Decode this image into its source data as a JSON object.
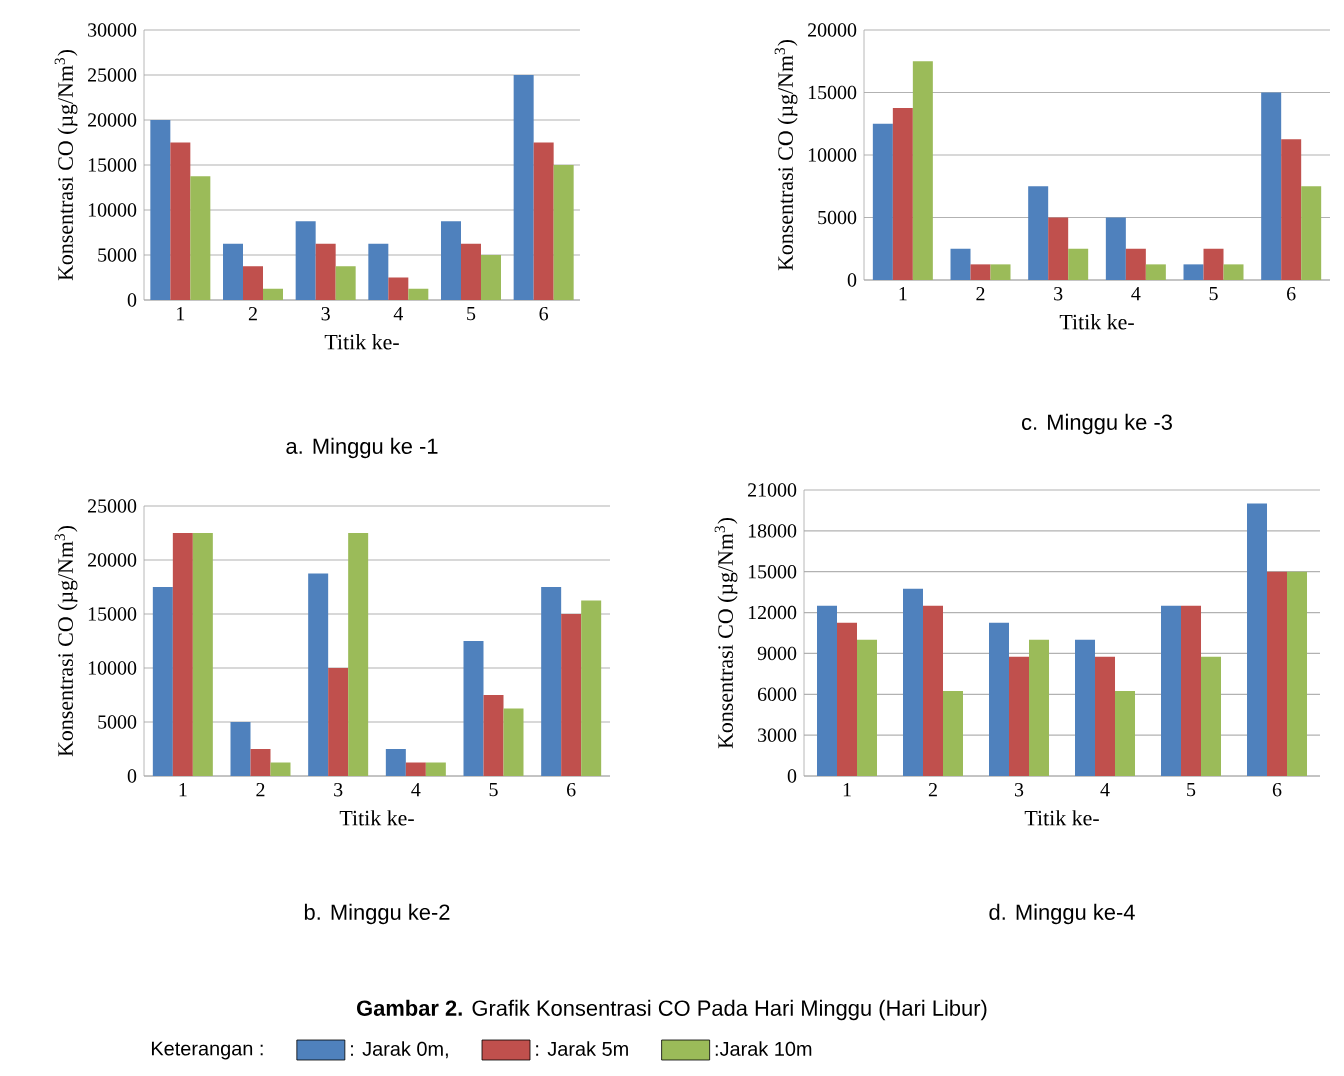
{
  "chart_data": [
    {
      "type": "bar",
      "title": "a.    Minggu ke -1",
      "xlabel": "Titik ke-",
      "ylabel": "Konsentrasi CO (µg/Nm$^{3}$)",
      "categories": [
        "1",
        "2",
        "3",
        "4",
        "5",
        "6"
      ],
      "grid": "y",
      "ylim": [
        0,
        30000
      ],
      "yticks": [
        0,
        5000,
        10000,
        15000,
        20000,
        25000,
        30000
      ],
      "series": [
        {
          "color": "#4f81bd",
          "values": [
            20000,
            6250,
            8750,
            6250,
            8750,
            25000
          ]
        },
        {
          "color": "#c0504d",
          "values": [
            17500,
            3750,
            6250,
            2500,
            6250,
            17500
          ]
        },
        {
          "color": "#9bbb59",
          "values": [
            13750,
            1250,
            3750,
            1250,
            5000,
            15000
          ]
        }
      ]
    },
    {
      "type": "bar",
      "title": "c.    Minggu ke -3",
      "xlabel": "Titik ke-",
      "ylabel": "Konsentrasi CO (µg/Nm$^{3}$)",
      "categories": [
        "1",
        "2",
        "3",
        "4",
        "5",
        "6"
      ],
      "grid": "y",
      "ylim": [
        0,
        20000
      ],
      "yticks": [
        0,
        5000,
        10000,
        15000,
        20000
      ],
      "series": [
        {
          "color": "#4f81bd",
          "values": [
            12500,
            2500,
            7500,
            5000,
            1250,
            15000
          ]
        },
        {
          "color": "#c0504d",
          "values": [
            13750,
            1250,
            5000,
            2500,
            2500,
            11250
          ]
        },
        {
          "color": "#9bbb59",
          "values": [
            17500,
            1250,
            2500,
            1250,
            1250,
            7500
          ]
        }
      ]
    },
    {
      "type": "bar",
      "title": "b.    Minggu ke-2",
      "xlabel": "Titik ke-",
      "ylabel": "Konsentrasi CO (µg/Nm$^{3}$)",
      "categories": [
        "1",
        "2",
        "3",
        "4",
        "5",
        "6"
      ],
      "grid": "y",
      "ylim": [
        0,
        25000
      ],
      "yticks": [
        0,
        5000,
        10000,
        15000,
        20000,
        25000
      ],
      "series": [
        {
          "color": "#4f81bd",
          "values": [
            17500,
            5000,
            18750,
            2500,
            12500,
            17500
          ]
        },
        {
          "color": "#c0504d",
          "values": [
            22500,
            2500,
            10000,
            1250,
            7500,
            15000
          ]
        },
        {
          "color": "#9bbb59",
          "values": [
            22500,
            1250,
            22500,
            1250,
            6250,
            16250
          ]
        }
      ]
    },
    {
      "type": "bar",
      "title": "d.    Minggu ke-4",
      "xlabel": "Titik ke-",
      "ylabel": "Konsentrasi CO (µg/Nm$^{3}$)",
      "categories": [
        "1",
        "2",
        "3",
        "4",
        "5",
        "6"
      ],
      "grid": "y",
      "ylim": [
        0,
        21000
      ],
      "yticks": [
        0,
        3000,
        6000,
        9000,
        12000,
        15000,
        18000,
        21000
      ],
      "legend": "bottom",
      "legend_title": "Keterangan :",
      "annotations": [
        "**Gambar 2.** Grafik Konsentrasi CO Pada Hari Minggu (Hari Libur)"
      ],
      "series": [
        {
          "name": ": Jarak 0m,",
          "color": "#4f81bd",
          "values": [
            12500,
            13750,
            11250,
            10000,
            12500,
            20000
          ]
        },
        {
          "name": ": Jarak 5m",
          "color": "#c0504d",
          "values": [
            11250,
            12500,
            8750,
            8750,
            12500,
            15000
          ]
        },
        {
          "name": ":Jarak 10m",
          "color": "#9bbb59",
          "values": [
            10000,
            6250,
            10000,
            6250,
            8750,
            15000
          ]
        }
      ]
    }
  ]
}
